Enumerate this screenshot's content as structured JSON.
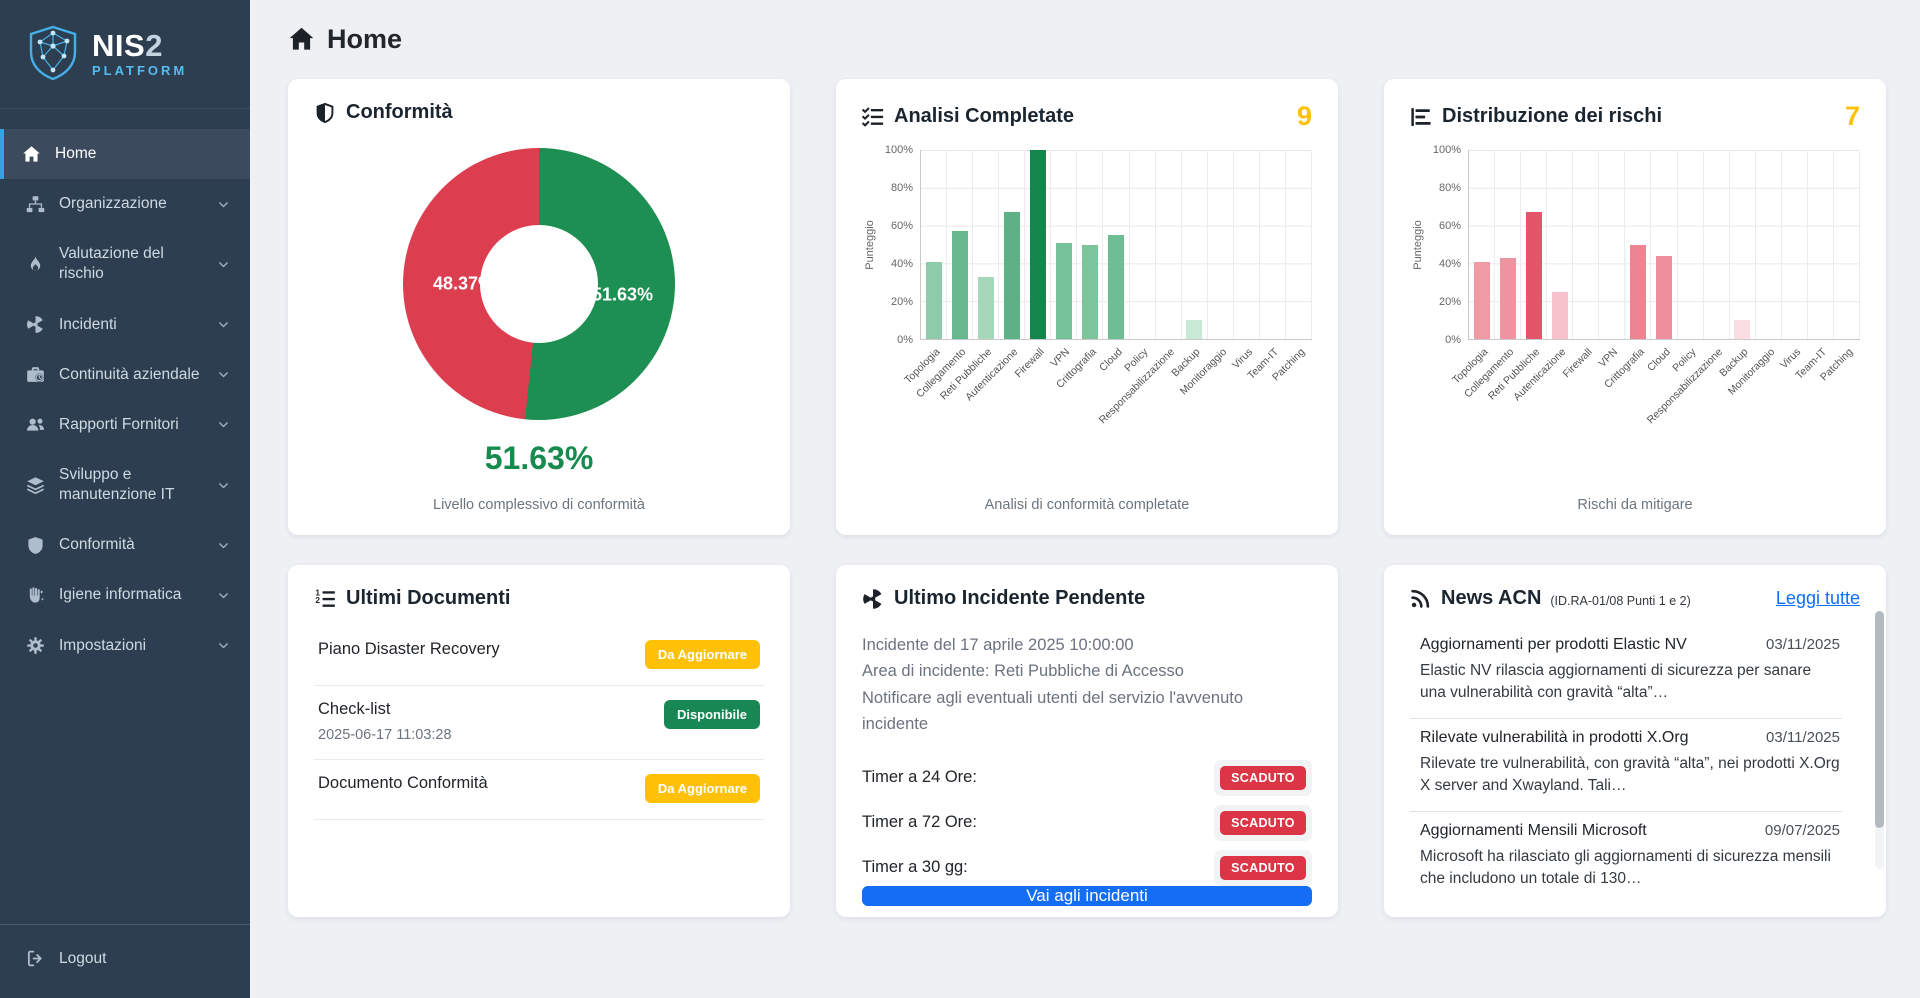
{
  "sidebar": {
    "logo": {
      "title_main": "NIS",
      "title_suffix": "2",
      "subtitle": "PLATFORM"
    },
    "items": [
      {
        "label": "Home",
        "icon": "home-icon",
        "active": true,
        "chevron": false
      },
      {
        "label": "Organizzazione",
        "icon": "sitemap-icon",
        "active": false,
        "chevron": true
      },
      {
        "label": "Valutazione del rischio",
        "icon": "flame-icon",
        "active": false,
        "chevron": true
      },
      {
        "label": "Incidenti",
        "icon": "radiation-icon",
        "active": false,
        "chevron": true
      },
      {
        "label": "Continuità aziendale",
        "icon": "briefcase-clock-icon",
        "active": false,
        "chevron": true
      },
      {
        "label": "Rapporti Fornitori",
        "icon": "users-icon",
        "active": false,
        "chevron": true
      },
      {
        "label": "Sviluppo e manutenzione IT",
        "icon": "layers-icon",
        "active": false,
        "chevron": true
      },
      {
        "label": "Conformità",
        "icon": "shield-icon",
        "active": false,
        "chevron": true
      },
      {
        "label": "Igiene informatica",
        "icon": "hand-sparkles-icon",
        "active": false,
        "chevron": true
      },
      {
        "label": "Impostazioni",
        "icon": "gear-icon",
        "active": false,
        "chevron": true
      }
    ],
    "logout_label": "Logout"
  },
  "header": {
    "title": "Home"
  },
  "cards": {
    "conformita": {
      "title": "Conformità",
      "center_value": "51.63%",
      "caption": "Livello complessivo di conformità"
    },
    "analisi": {
      "title": "Analisi Completate",
      "count": "9",
      "caption": "Analisi di conformità completate"
    },
    "rischi": {
      "title": "Distribuzione dei rischi",
      "count": "7",
      "caption": "Rischi da mitigare"
    },
    "documenti": {
      "title": "Ultimi Documenti",
      "items": [
        {
          "name": "Piano Disaster Recovery",
          "date": "",
          "badge": "Da Aggiornare",
          "badge_color": "#ffc107"
        },
        {
          "name": "Check-list",
          "date": "2025-06-17 11:03:28",
          "badge": "Disponibile",
          "badge_color": "#198754"
        },
        {
          "name": "Documento Conformità",
          "date": "",
          "badge": "Da Aggiornare",
          "badge_color": "#ffc107"
        }
      ]
    },
    "incidente": {
      "title": "Ultimo Incidente Pendente",
      "lines": [
        "Incidente del 17 aprile 2025 10:00:00",
        "Area di incidente: Reti Pubbliche di Accesso",
        "Notificare agli eventuali utenti del servizio l'avvenuto incidente"
      ],
      "timers": [
        {
          "label": "Timer a 24 Ore:",
          "status": "SCADUTO",
          "badge_color": "#dc3545"
        },
        {
          "label": "Timer a 72 Ore:",
          "status": "SCADUTO",
          "badge_color": "#dc3545"
        },
        {
          "label": "Timer a 30 gg:",
          "status": "SCADUTO",
          "badge_color": "#dc3545"
        }
      ],
      "button_label": "Vai agli incidenti"
    },
    "news": {
      "title": "News ACN",
      "subtitle": "(ID.RA-01/08 Punti 1 e 2)",
      "link_label": "Leggi tutte",
      "items": [
        {
          "title": "Aggiornamenti per prodotti Elastic NV",
          "date": "03/11/2025",
          "body": "Elastic NV rilascia aggiornamenti di sicurezza per sanare una vulnerabilità con gravità “alta”…"
        },
        {
          "title": "Rilevate vulnerabilità in prodotti X.Org",
          "date": "03/11/2025",
          "body": "Rilevate tre vulnerabilità, con gravità “alta”, nei prodotti X.Org X server and Xwayland. Tali…"
        },
        {
          "title": "Aggiornamenti Mensili Microsoft",
          "date": "09/07/2025",
          "body": "Microsoft ha rilasciato gli aggiornamenti di sicurezza mensili che includono un totale di 130…"
        }
      ]
    }
  },
  "chart_data": [
    {
      "type": "pie",
      "donut": true,
      "title": "Conformità",
      "slices": [
        {
          "label": "51.63%",
          "value": 51.63,
          "color": "#1e8f52"
        },
        {
          "label": "48.37%",
          "value": 48.37,
          "color": "#dc3d4f"
        }
      ],
      "center_text": "51.63%",
      "caption": "Livello complessivo di conformità",
      "start_angle_deg": 0,
      "direction": "clockwise"
    },
    {
      "type": "bar",
      "title": "Analisi Completate",
      "xlabel": "",
      "ylabel": "Punteggio",
      "ylim": [
        0,
        100
      ],
      "yticks": [
        "0%",
        "20%",
        "40%",
        "60%",
        "80%",
        "100%"
      ],
      "grid": true,
      "categories": [
        "Topologia",
        "Collegamento",
        "Reti Pubbliche",
        "Autenticazione",
        "Firewall",
        "VPN",
        "Crittografia",
        "Cloud",
        "Policy",
        "Responsabilizzazione",
        "Backup",
        "Monitoraggio",
        "Virus",
        "Team-IT",
        "Patching"
      ],
      "values": [
        41,
        57,
        33,
        67,
        100,
        51,
        50,
        55,
        0,
        0,
        10,
        0,
        0,
        0,
        0
      ],
      "colors": [
        "#8ecbaa",
        "#67b98d",
        "#a5d7ba",
        "#5db184",
        "#15854d",
        "#78c29a",
        "#7bc49c",
        "#6fbd93",
        "#eaf6ef",
        "#eaf6ef",
        "#c8e9d6",
        "#eaf6ef",
        "#eaf6ef",
        "#eaf6ef",
        "#eaf6ef"
      ]
    },
    {
      "type": "bar",
      "title": "Distribuzione dei rischi",
      "xlabel": "",
      "ylabel": "Punteggio",
      "ylim": [
        0,
        100
      ],
      "yticks": [
        "0%",
        "20%",
        "40%",
        "60%",
        "80%",
        "100%"
      ],
      "grid": true,
      "categories": [
        "Topologia",
        "Collegamento",
        "Reti Pubbliche",
        "Autenticazione",
        "Firewall",
        "VPN",
        "Crittografia",
        "Cloud",
        "Policy",
        "Responsabilizzazione",
        "Backup",
        "Monitoraggio",
        "Virus",
        "Team-IT",
        "Patching"
      ],
      "values": [
        41,
        43,
        67,
        25,
        0,
        0,
        50,
        44,
        0,
        0,
        10,
        0,
        0,
        0,
        0
      ],
      "colors": [
        "#f09aa5",
        "#ef93a0",
        "#e4556c",
        "#f7c2cb",
        "#fdeef1",
        "#fdeef1",
        "#ec8492",
        "#ee909d",
        "#fdeef1",
        "#fdeef1",
        "#fbdee3",
        "#fdeef1",
        "#fdeef1",
        "#fdeef1",
        "#fdeef1"
      ]
    }
  ]
}
